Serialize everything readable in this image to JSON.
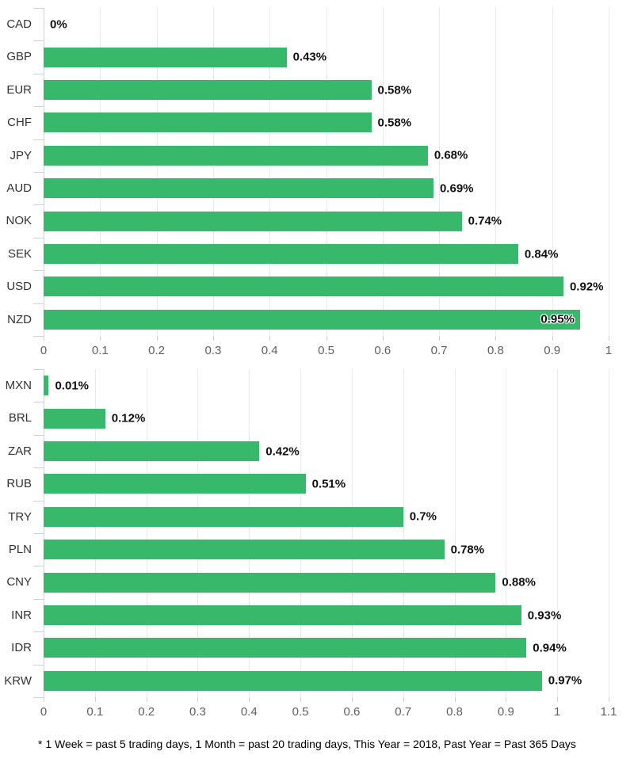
{
  "chart_data": [
    {
      "type": "bar",
      "orientation": "horizontal",
      "title": "",
      "xlabel": "",
      "ylabel": "",
      "categories": [
        "CAD",
        "GBP",
        "EUR",
        "CHF",
        "JPY",
        "AUD",
        "NOK",
        "SEK",
        "USD",
        "NZD"
      ],
      "values": [
        0,
        0.43,
        0.58,
        0.58,
        0.68,
        0.69,
        0.74,
        0.84,
        0.92,
        0.95
      ],
      "value_labels": [
        "0%",
        "0.43%",
        "0.58%",
        "0.58%",
        "0.68%",
        "0.69%",
        "0.74%",
        "0.84%",
        "0.92%",
        "0.95%"
      ],
      "xlim": [
        0,
        1.0
      ],
      "tick_step": 0.1,
      "x_ticks": [
        "0",
        "0.1",
        "0.2",
        "0.3",
        "0.4",
        "0.5",
        "0.6",
        "0.7",
        "0.8",
        "0.9",
        "1"
      ],
      "grid": true,
      "legend": false
    },
    {
      "type": "bar",
      "orientation": "horizontal",
      "title": "",
      "xlabel": "",
      "ylabel": "",
      "categories": [
        "MXN",
        "BRL",
        "ZAR",
        "RUB",
        "TRY",
        "PLN",
        "CNY",
        "INR",
        "IDR",
        "KRW"
      ],
      "values": [
        0.01,
        0.12,
        0.42,
        0.51,
        0.7,
        0.78,
        0.88,
        0.93,
        0.94,
        0.97
      ],
      "value_labels": [
        "0.01%",
        "0.12%",
        "0.42%",
        "0.51%",
        "0.7%",
        "0.78%",
        "0.88%",
        "0.93%",
        "0.94%",
        "0.97%"
      ],
      "xlim": [
        0,
        1.1
      ],
      "tick_step": 0.1,
      "x_ticks": [
        "0",
        "0.1",
        "0.2",
        "0.3",
        "0.4",
        "0.5",
        "0.6",
        "0.7",
        "0.8",
        "0.9",
        "1",
        "1.1"
      ],
      "grid": true,
      "legend": false
    }
  ],
  "footnote": "* 1 Week = past 5 trading days, 1 Month = past 20 trading days, This Year = 2018, Past Year = Past 365 Days",
  "colors": {
    "bar": "#38b86b",
    "grid": "#e7e9ea",
    "axis": "#cfd2d4",
    "tick": "#cfd2d4",
    "category_label": "#333333",
    "axis_label": "#5f6062",
    "value_label": "#111111",
    "background": "#ffffff"
  }
}
